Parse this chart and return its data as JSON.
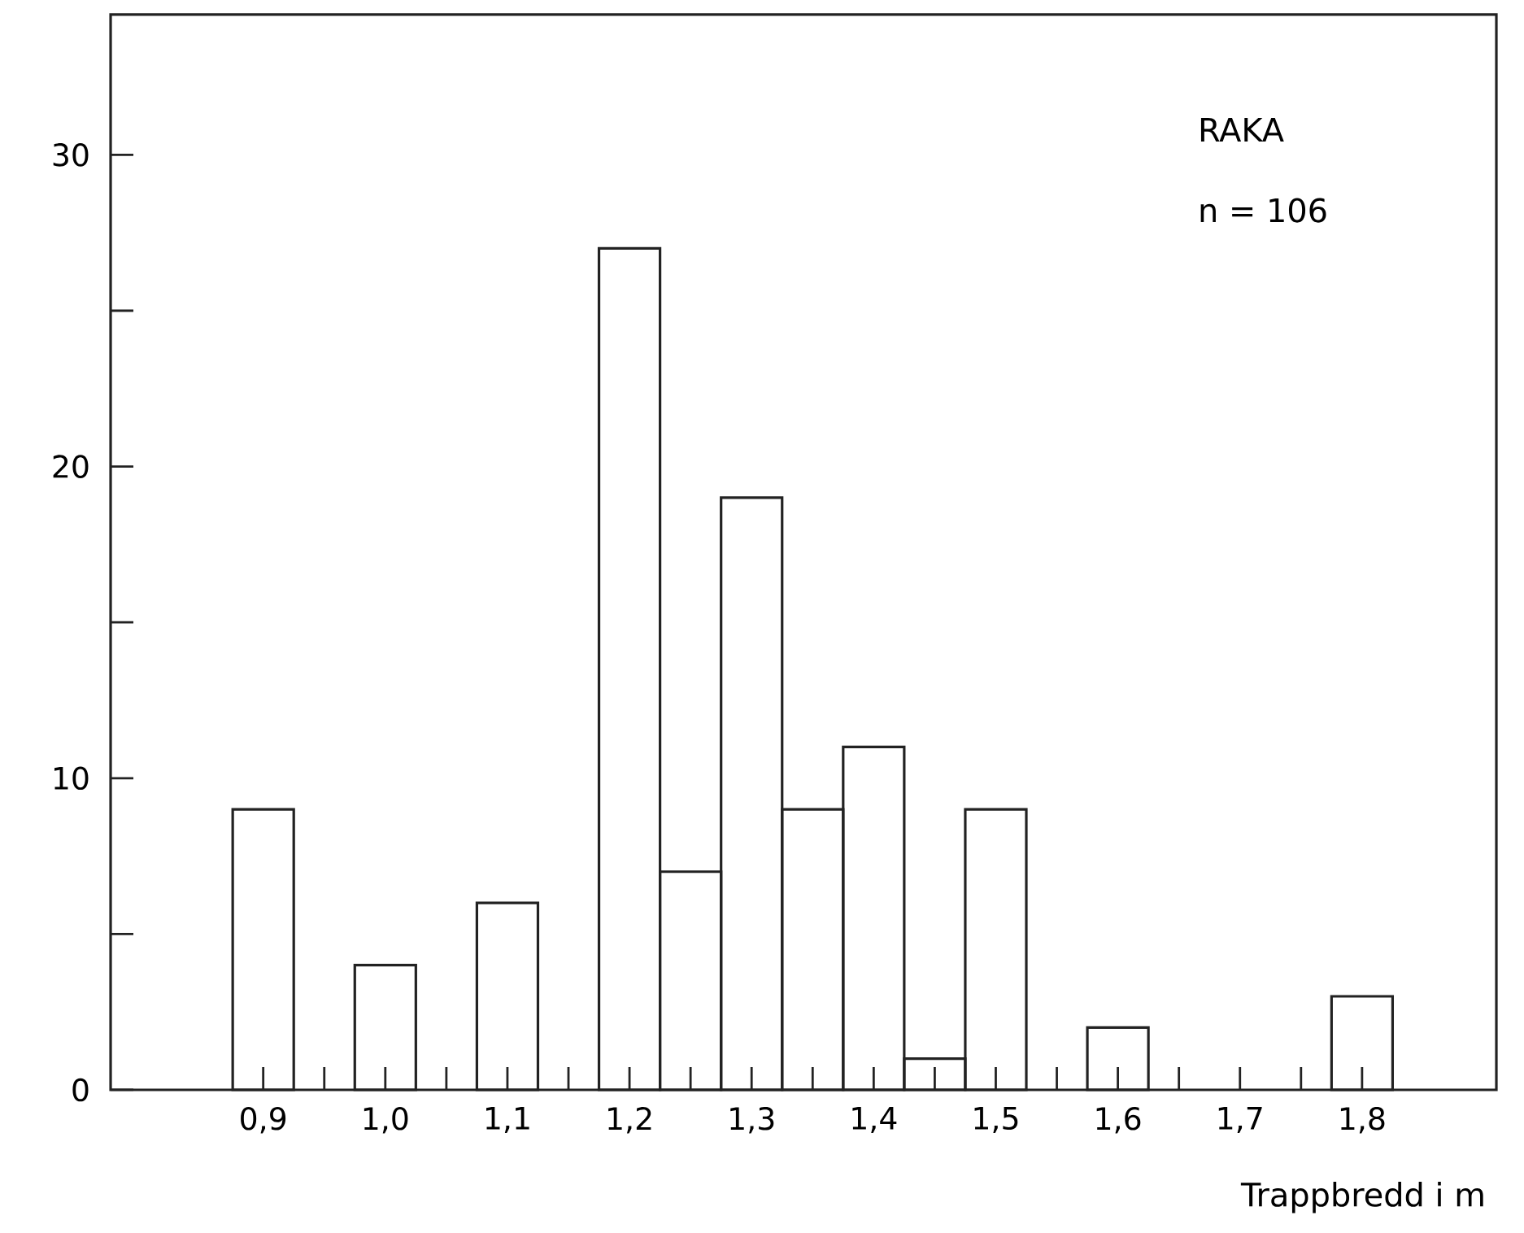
{
  "chart_data": {
    "type": "bar",
    "xlabel": "Trappbredd i m",
    "annotations": [
      "RAKA",
      "n = 106"
    ],
    "x": [
      0.9,
      1.0,
      1.1,
      1.2,
      1.25,
      1.3,
      1.35,
      1.4,
      1.45,
      1.5,
      1.6,
      1.8
    ],
    "values": [
      9,
      4,
      6,
      27,
      7,
      19,
      9,
      11,
      1,
      9,
      2,
      3
    ],
    "color": "#222222",
    "xlim": [
      0.775,
      1.91
    ],
    "ylim": [
      0,
      34.5
    ],
    "xticks": [
      {
        "value": 0.9,
        "label": "0,9"
      },
      {
        "value": 0.95,
        "label": null
      },
      {
        "value": 1.0,
        "label": "1,0"
      },
      {
        "value": 1.05,
        "label": null
      },
      {
        "value": 1.1,
        "label": "1,1"
      },
      {
        "value": 1.15,
        "label": null
      },
      {
        "value": 1.2,
        "label": "1,2"
      },
      {
        "value": 1.25,
        "label": null
      },
      {
        "value": 1.3,
        "label": "1,3"
      },
      {
        "value": 1.35,
        "label": null
      },
      {
        "value": 1.4,
        "label": "1,4"
      },
      {
        "value": 1.45,
        "label": null
      },
      {
        "value": 1.5,
        "label": "1,5"
      },
      {
        "value": 1.55,
        "label": null
      },
      {
        "value": 1.6,
        "label": "1,6"
      },
      {
        "value": 1.65,
        "label": null
      },
      {
        "value": 1.7,
        "label": "1,7"
      },
      {
        "value": 1.75,
        "label": null
      },
      {
        "value": 1.8,
        "label": "1,8"
      }
    ],
    "yticks": [
      0,
      {
        "value": 5,
        "label": null
      },
      10,
      {
        "value": 15,
        "label": null
      },
      20,
      {
        "value": 25,
        "label": null
      },
      30
    ]
  }
}
